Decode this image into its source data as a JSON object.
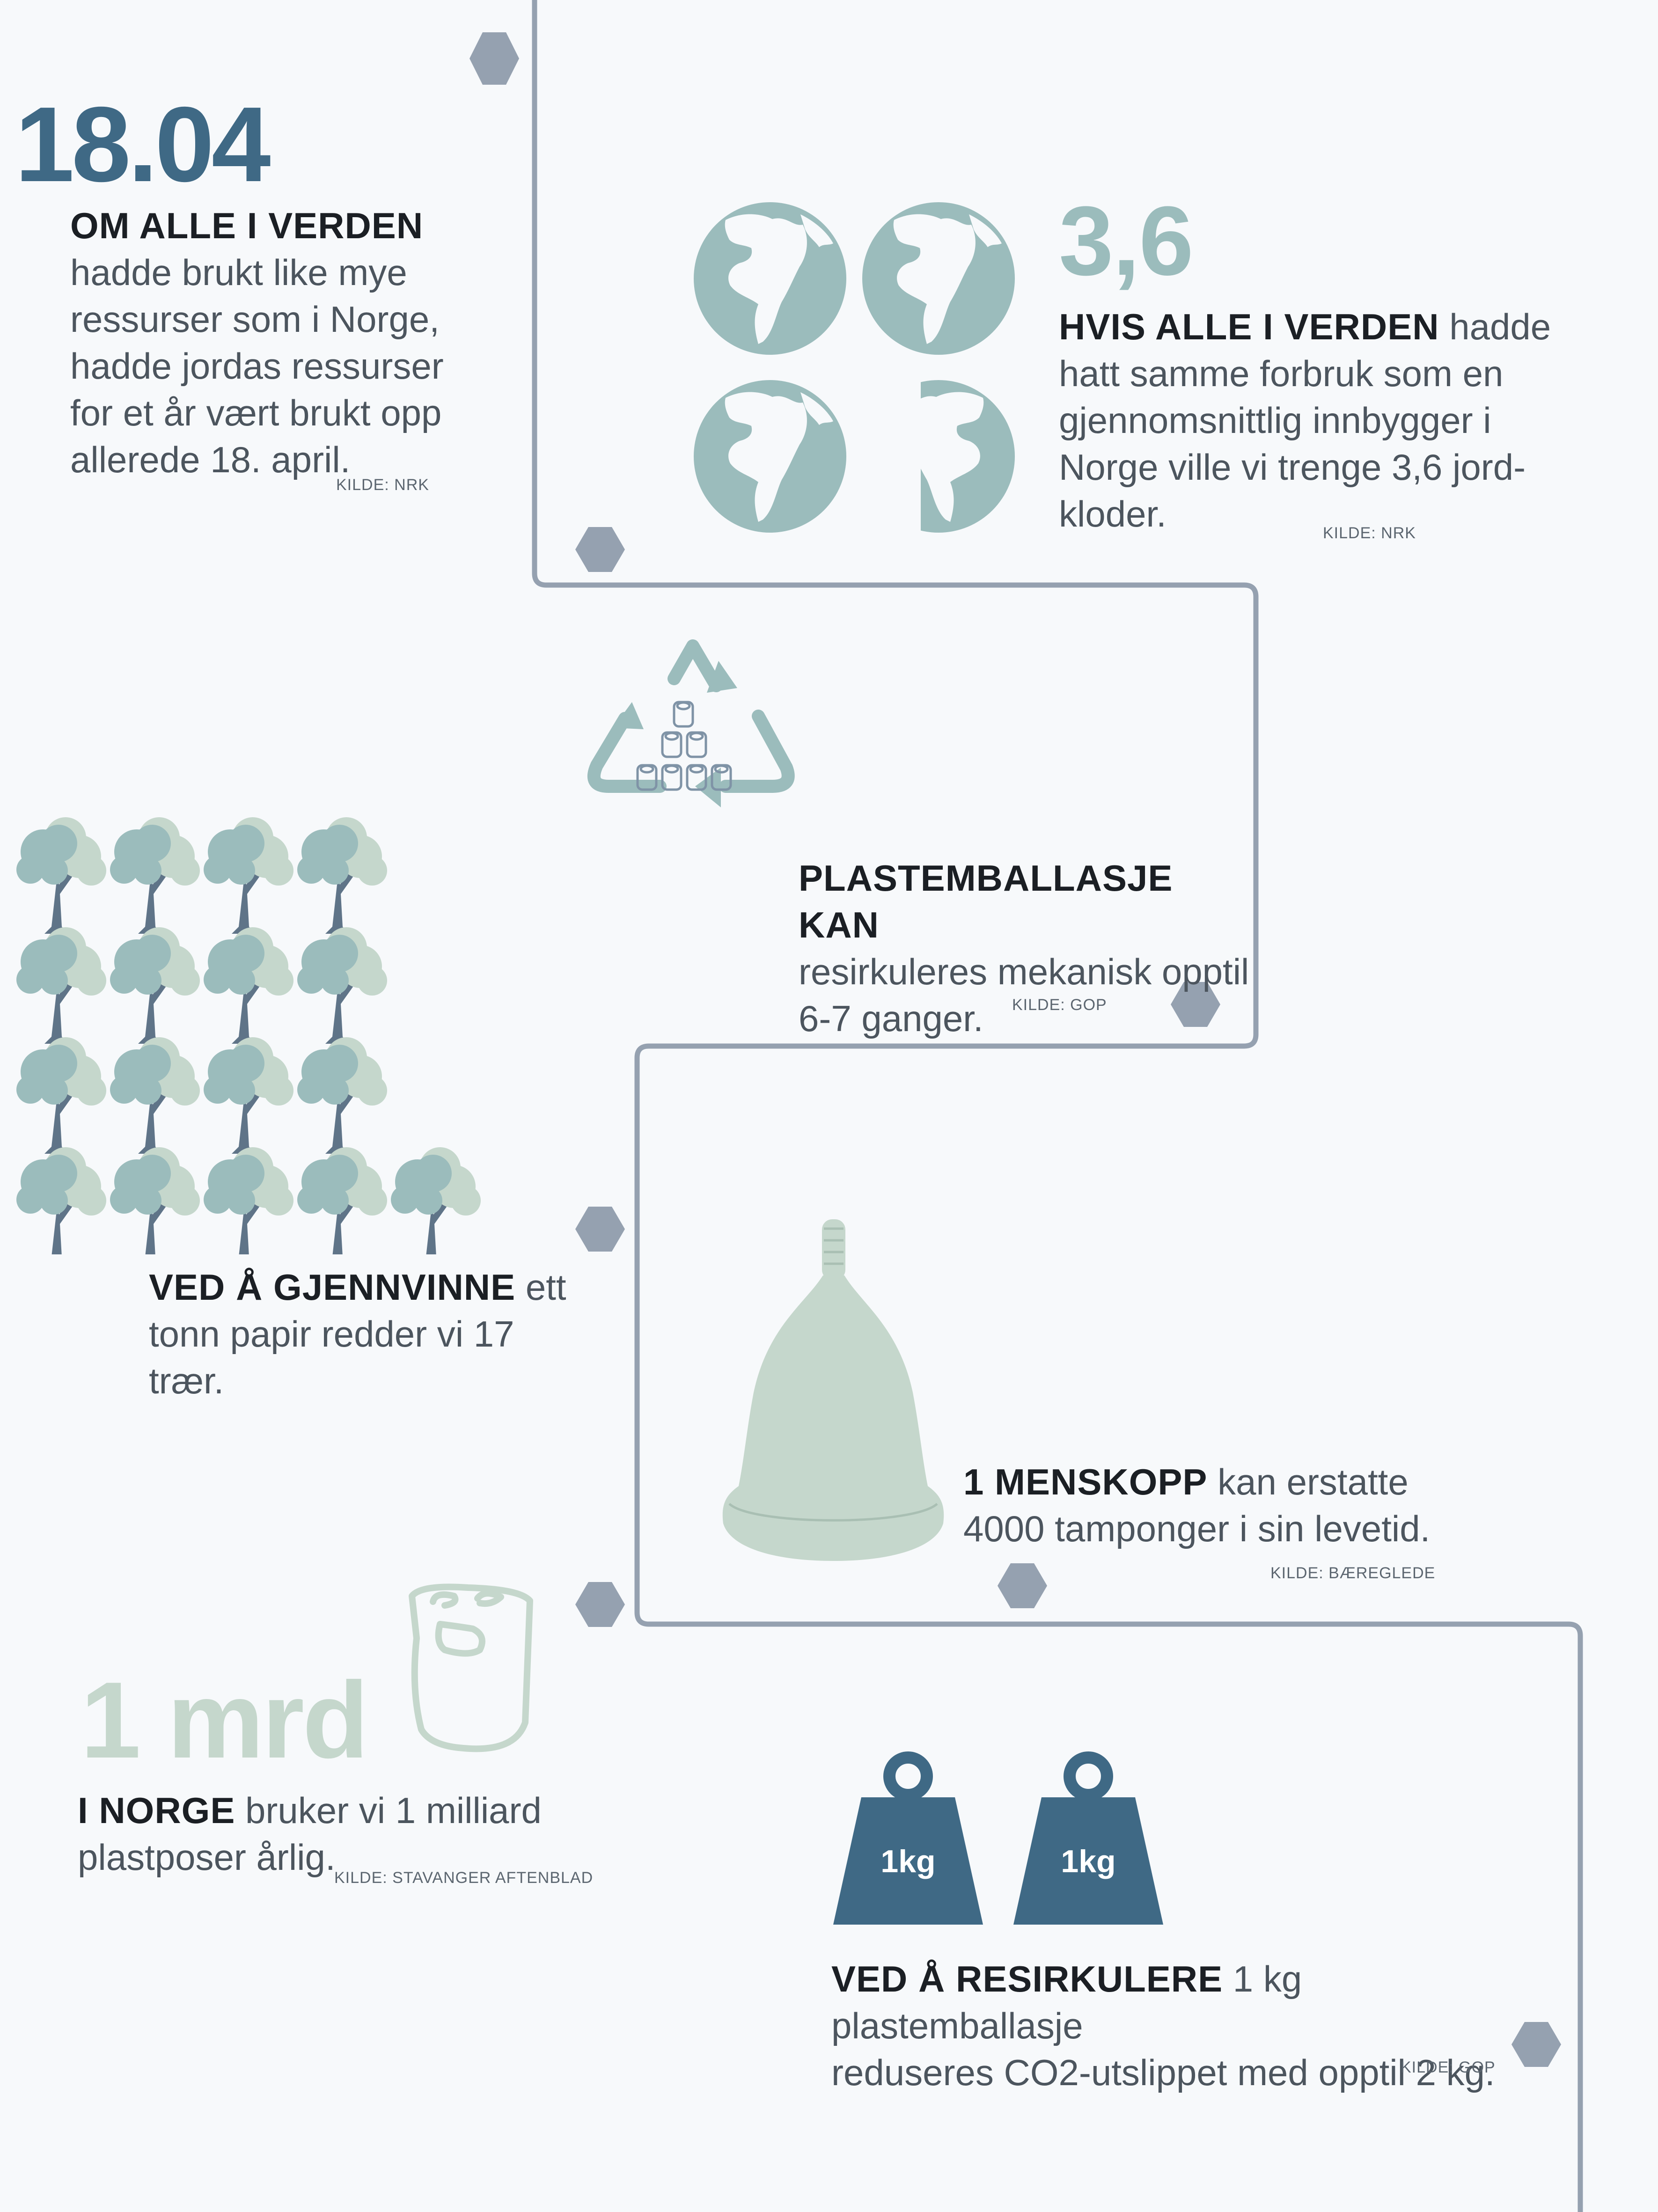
{
  "colors": {
    "background": "#f7f9fb",
    "timeline": "#95a1b0",
    "dark_blue": "#3f6985",
    "earth_teal": "#9bbcbc",
    "pale_green": "#c5d7cc",
    "tree_trunk": "#5f7488",
    "text_dark": "#1b1f24",
    "text_body": "#4c555e"
  },
  "item1": {
    "number": "18.04",
    "bold": "OM ALLE I VERDEN",
    "lines": [
      "hadde brukt like mye",
      "ressurser som i Norge,",
      "hadde jordas ressurser",
      "for et år vært brukt opp",
      "allerede 18. april."
    ],
    "source": "KILDE: NRK"
  },
  "item2": {
    "number": "3,6",
    "bold": "HVIS ALLE I VERDEN",
    "line1_rest": " hadde",
    "lines": [
      "hatt samme forbruk som en",
      "gjennomsnittlig innbygger i",
      "Norge ville vi trenge 3,6 jord-",
      "kloder."
    ],
    "source": "KILDE: NRK",
    "icon": "globe-icon",
    "globes_shown": 3.6
  },
  "item3": {
    "bold": "PLASTEMBALLASJE  KAN",
    "lines": [
      "resirkuleres mekanisk opptil",
      "6-7 ganger."
    ],
    "source": "KILDE: GOP",
    "icon": "recycle-icon"
  },
  "item4": {
    "bold": "VED Å GJENNVINNE",
    "line1_rest": " ett",
    "lines": [
      "tonn papir redder vi 17",
      "trær."
    ],
    "icon": "tree-icon",
    "tree_count": 17
  },
  "item5": {
    "bold": "1 MENSKOPP",
    "line1_rest": " kan erstatte",
    "lines": [
      "4000 tamponger i sin levetid."
    ],
    "source": "KILDE: BÆREGLEDE",
    "icon": "menstrual-cup-icon"
  },
  "item6": {
    "number": "1 mrd",
    "bold": "I NORGE",
    "line1_rest": " bruker vi 1 milliard",
    "lines": [
      "plastposer årlig."
    ],
    "source": "KILDE: STAVANGER AFTENBLAD",
    "icon": "plastic-bag-icon"
  },
  "item7": {
    "bold": "VED Å RESIRKULERE",
    "line1_rest": " 1 kg  plastemballasje",
    "lines": [
      "reduseres CO2-utslippet med opptil 2 kg."
    ],
    "source": "KILDE: GOP",
    "weight_label": "1kg",
    "icon": "weight-icon"
  }
}
